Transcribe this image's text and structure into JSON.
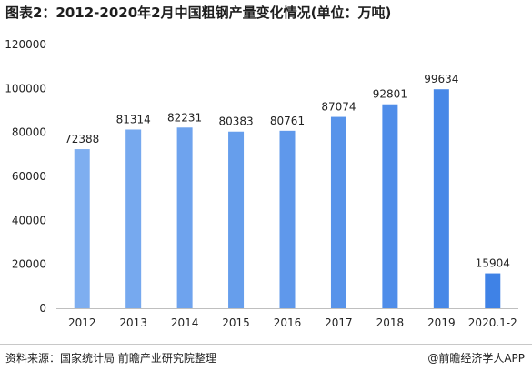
{
  "title": "图表2：2012-2020年2月中国粗钢产量变化情况(单位：万吨)",
  "source": "资料来源：国家统计局 前瞻产业研究院整理",
  "brand": "@前瞻经济学人APP",
  "chart_data": {
    "type": "bar",
    "title": "图表2：2012-2020年2月中国粗钢产量变化情况(单位：万吨)",
    "categories": [
      "2012",
      "2013",
      "2014",
      "2015",
      "2016",
      "2017",
      "2018",
      "2019",
      "2020.1-2"
    ],
    "values": [
      72388,
      81314,
      82231,
      80383,
      80761,
      87074,
      92801,
      99634,
      15904
    ],
    "data_labels": [
      "72388",
      "81314",
      "82231",
      "80383",
      "80761",
      "87074",
      "92801",
      "99634",
      "15904"
    ],
    "yticks": [
      0,
      20000,
      40000,
      60000,
      80000,
      100000,
      120000
    ],
    "ytick_labels": [
      "0",
      "20000",
      "40000",
      "60000",
      "80000",
      "100000",
      "120000"
    ],
    "ylim": [
      0,
      120000
    ],
    "xlabel": "",
    "ylabel": "",
    "grid": false,
    "legend": "none",
    "colors": {
      "start": "#7eaef0",
      "end": "#3f82e6",
      "axis": "#bfbfbf"
    }
  }
}
